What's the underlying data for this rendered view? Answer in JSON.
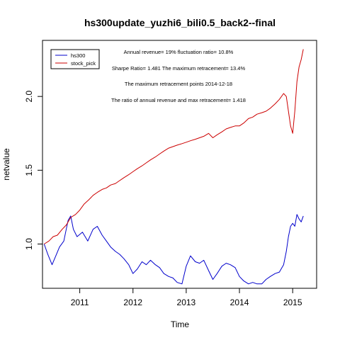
{
  "chart_data": {
    "type": "line",
    "title": "hs300update_yuzhi6_bili0.5_back2--final",
    "xlabel": "Time",
    "ylabel": "netvalue",
    "xlim": [
      2010.3,
      2015.45
    ],
    "ylim": [
      0.7,
      2.38
    ],
    "x_ticks": [
      2011,
      2012,
      2013,
      2014,
      2015
    ],
    "x_tick_labels": [
      "2011",
      "2012",
      "2013",
      "2014",
      "2015"
    ],
    "y_ticks": [
      1.0,
      1.5,
      2.0
    ],
    "y_tick_labels": [
      "1.0",
      "1.5",
      "2.0"
    ],
    "legend_position": "top-left",
    "grid": false,
    "annotations": [
      "Annual revenue= 19% fluctuation ratio= 10.8%",
      "Sharpe Ratio= 1.481 The maximum retracement= 13.4%",
      "The maximum retracement points 2014-12-18",
      "The ratio of annual revenue and max retracement= 1.418"
    ],
    "series": [
      {
        "name": "hs300",
        "color": "#0000cc",
        "points": [
          [
            2010.33,
            1.0
          ],
          [
            2010.4,
            0.93
          ],
          [
            2010.48,
            0.86
          ],
          [
            2010.55,
            0.92
          ],
          [
            2010.62,
            0.98
          ],
          [
            2010.7,
            1.02
          ],
          [
            2010.78,
            1.16
          ],
          [
            2010.83,
            1.19
          ],
          [
            2010.88,
            1.1
          ],
          [
            2010.95,
            1.05
          ],
          [
            2011.05,
            1.08
          ],
          [
            2011.15,
            1.02
          ],
          [
            2011.25,
            1.1
          ],
          [
            2011.33,
            1.12
          ],
          [
            2011.42,
            1.06
          ],
          [
            2011.5,
            1.02
          ],
          [
            2011.58,
            0.98
          ],
          [
            2011.67,
            0.95
          ],
          [
            2011.75,
            0.93
          ],
          [
            2011.83,
            0.9
          ],
          [
            2011.92,
            0.86
          ],
          [
            2012.0,
            0.8
          ],
          [
            2012.08,
            0.83
          ],
          [
            2012.17,
            0.88
          ],
          [
            2012.25,
            0.86
          ],
          [
            2012.33,
            0.89
          ],
          [
            2012.42,
            0.86
          ],
          [
            2012.5,
            0.84
          ],
          [
            2012.58,
            0.8
          ],
          [
            2012.67,
            0.78
          ],
          [
            2012.75,
            0.77
          ],
          [
            2012.83,
            0.74
          ],
          [
            2012.92,
            0.73
          ],
          [
            2013.0,
            0.85
          ],
          [
            2013.08,
            0.92
          ],
          [
            2013.17,
            0.88
          ],
          [
            2013.25,
            0.87
          ],
          [
            2013.33,
            0.89
          ],
          [
            2013.42,
            0.82
          ],
          [
            2013.5,
            0.76
          ],
          [
            2013.58,
            0.8
          ],
          [
            2013.67,
            0.85
          ],
          [
            2013.75,
            0.87
          ],
          [
            2013.83,
            0.86
          ],
          [
            2013.92,
            0.84
          ],
          [
            2014.0,
            0.78
          ],
          [
            2014.08,
            0.75
          ],
          [
            2014.17,
            0.73
          ],
          [
            2014.25,
            0.74
          ],
          [
            2014.33,
            0.73
          ],
          [
            2014.42,
            0.73
          ],
          [
            2014.5,
            0.76
          ],
          [
            2014.58,
            0.78
          ],
          [
            2014.67,
            0.8
          ],
          [
            2014.75,
            0.81
          ],
          [
            2014.83,
            0.86
          ],
          [
            2014.88,
            0.95
          ],
          [
            2014.92,
            1.05
          ],
          [
            2014.96,
            1.12
          ],
          [
            2015.0,
            1.14
          ],
          [
            2015.04,
            1.12
          ],
          [
            2015.08,
            1.2
          ],
          [
            2015.12,
            1.17
          ],
          [
            2015.16,
            1.15
          ],
          [
            2015.2,
            1.19
          ]
        ]
      },
      {
        "name": "stock_pick",
        "color": "#cc0000",
        "points": [
          [
            2010.33,
            1.0
          ],
          [
            2010.42,
            1.02
          ],
          [
            2010.5,
            1.05
          ],
          [
            2010.58,
            1.06
          ],
          [
            2010.67,
            1.1
          ],
          [
            2010.75,
            1.13
          ],
          [
            2010.83,
            1.18
          ],
          [
            2010.92,
            1.2
          ],
          [
            2011.0,
            1.23
          ],
          [
            2011.08,
            1.27
          ],
          [
            2011.17,
            1.3
          ],
          [
            2011.25,
            1.33
          ],
          [
            2011.33,
            1.35
          ],
          [
            2011.42,
            1.37
          ],
          [
            2011.5,
            1.38
          ],
          [
            2011.58,
            1.4
          ],
          [
            2011.67,
            1.41
          ],
          [
            2011.75,
            1.43
          ],
          [
            2011.83,
            1.45
          ],
          [
            2011.92,
            1.47
          ],
          [
            2012.0,
            1.49
          ],
          [
            2012.08,
            1.51
          ],
          [
            2012.17,
            1.53
          ],
          [
            2012.25,
            1.55
          ],
          [
            2012.33,
            1.57
          ],
          [
            2012.42,
            1.59
          ],
          [
            2012.5,
            1.61
          ],
          [
            2012.58,
            1.63
          ],
          [
            2012.67,
            1.65
          ],
          [
            2012.75,
            1.66
          ],
          [
            2012.83,
            1.67
          ],
          [
            2012.92,
            1.68
          ],
          [
            2013.0,
            1.69
          ],
          [
            2013.08,
            1.7
          ],
          [
            2013.17,
            1.71
          ],
          [
            2013.25,
            1.72
          ],
          [
            2013.33,
            1.73
          ],
          [
            2013.42,
            1.75
          ],
          [
            2013.5,
            1.72
          ],
          [
            2013.58,
            1.74
          ],
          [
            2013.67,
            1.76
          ],
          [
            2013.75,
            1.78
          ],
          [
            2013.83,
            1.79
          ],
          [
            2013.92,
            1.8
          ],
          [
            2014.0,
            1.8
          ],
          [
            2014.08,
            1.82
          ],
          [
            2014.17,
            1.85
          ],
          [
            2014.25,
            1.86
          ],
          [
            2014.33,
            1.88
          ],
          [
            2014.42,
            1.89
          ],
          [
            2014.5,
            1.9
          ],
          [
            2014.58,
            1.92
          ],
          [
            2014.67,
            1.95
          ],
          [
            2014.75,
            1.98
          ],
          [
            2014.83,
            2.02
          ],
          [
            2014.88,
            2.0
          ],
          [
            2014.92,
            1.9
          ],
          [
            2014.96,
            1.8
          ],
          [
            2015.0,
            1.75
          ],
          [
            2015.04,
            1.9
          ],
          [
            2015.08,
            2.1
          ],
          [
            2015.12,
            2.2
          ],
          [
            2015.16,
            2.25
          ],
          [
            2015.2,
            2.32
          ]
        ]
      }
    ]
  }
}
